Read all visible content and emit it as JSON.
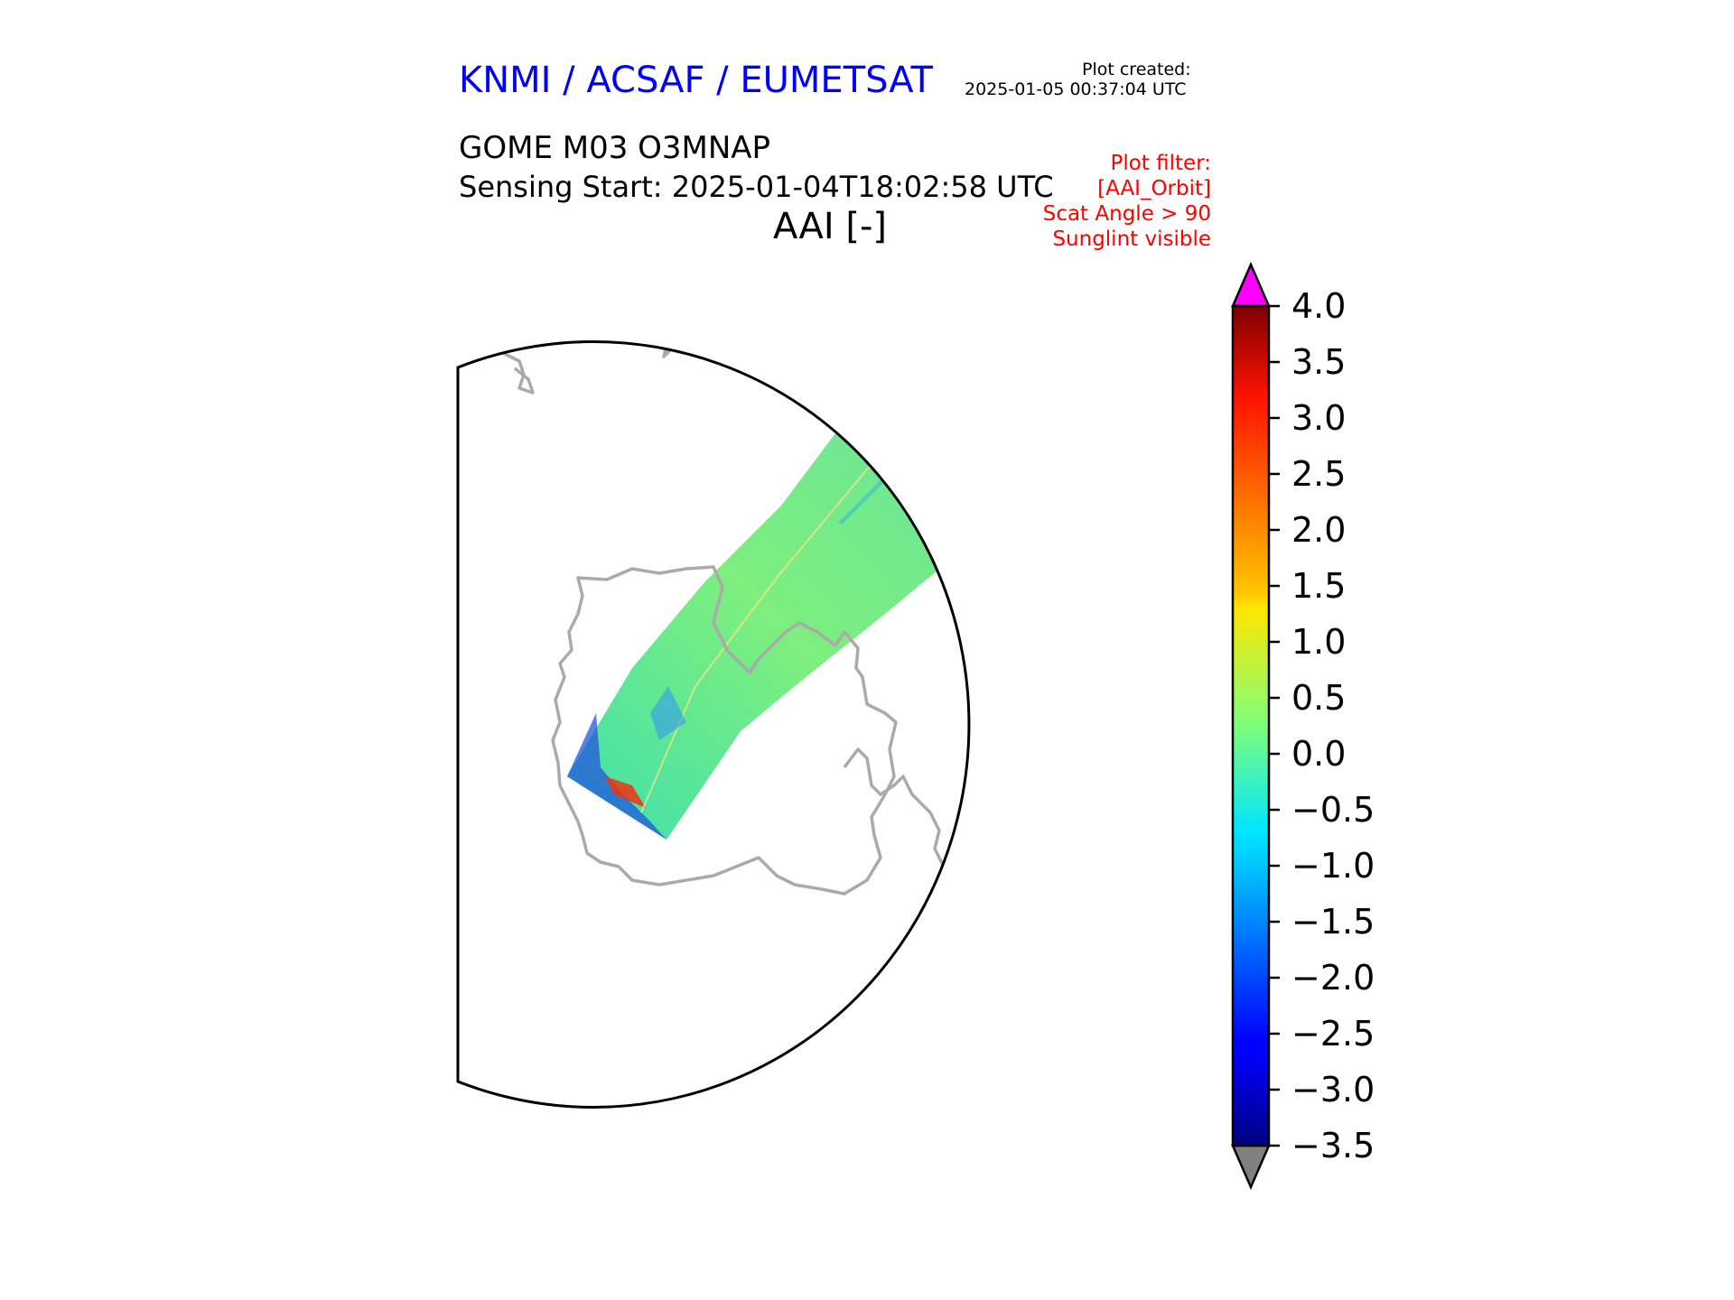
{
  "header": {
    "organization": "KNMI / ACSAF / EUMETSAT",
    "created_label": "Plot created:",
    "created_value": "2025-01-05 00:37:04 UTC"
  },
  "product": {
    "title": "GOME M03 O3MNAP",
    "sensing_start": "Sensing Start: 2025-01-04T18:02:58 UTC",
    "variable": "AAI [-]"
  },
  "filter": {
    "lines": [
      "Plot filter:",
      "[AAI_Orbit]",
      "Scat Angle > 90",
      "Sunglint visible"
    ]
  },
  "colorbar": {
    "min": -3.5,
    "max": 4.0,
    "step": 0.5,
    "tick_labels": [
      "4.0",
      "3.5",
      "3.0",
      "2.5",
      "2.0",
      "1.5",
      "1.0",
      "0.5",
      "0.0",
      "−0.5",
      "−1.0",
      "−1.5",
      "−2.0",
      "−2.5",
      "−3.0",
      "−3.5"
    ],
    "over_color": "#ff00ff",
    "under_color": "#808080",
    "colormap": "jet"
  },
  "colors": {
    "header": "#0000ff",
    "filter": "#ff0000",
    "coastline": "#aaaaaa",
    "swath": "#66ee88"
  }
}
